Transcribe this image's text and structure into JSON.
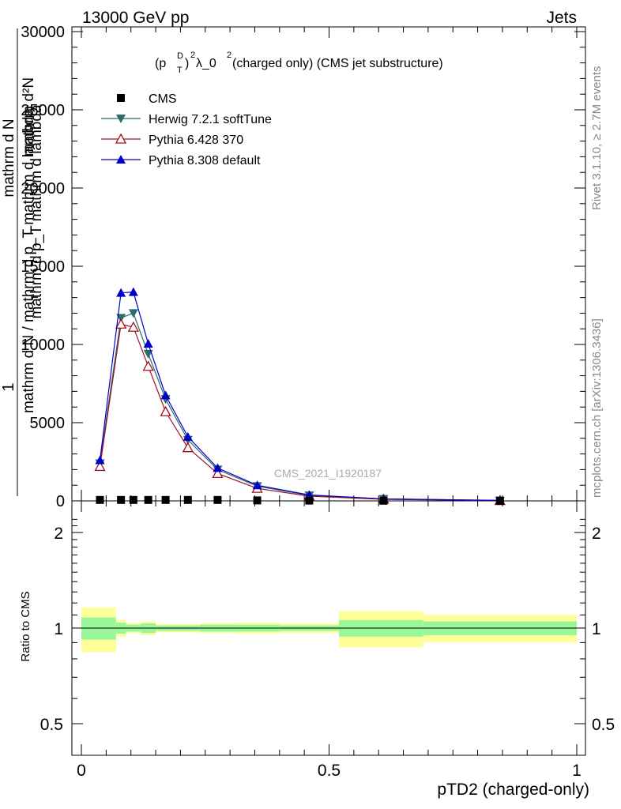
{
  "header": {
    "left": "13000 GeV pp",
    "right": "Jets"
  },
  "plot_title": {
    "prefix": "(p",
    "sup_d": "D",
    "sub_t": "T",
    "mid": ")",
    "sup_2a": "2",
    "lambda": " λ_0",
    "sup_2b": "2",
    "rest": " (charged only) (CMS jet substructure)"
  },
  "side_labels": {
    "rivet": "Rivet 3.1.10, ≥ 2.7M events",
    "mcplots": "mcplots.cern.ch [arXiv:1306.3436]"
  },
  "watermark": "CMS_2021_I1920187",
  "ylabel_main": {
    "one": "1",
    "num": "mathrm d N",
    "den": "mathrm d N / mathrm d p_T mathrm d lambda",
    "den_t": "T",
    "rhs_num": "mathrm d²N",
    "rhs_den": "mathrm d p_T mathrm d lambda"
  },
  "ylabel_ratio": "Ratio to CMS",
  "xlabel": "pTD2 (charged-only)",
  "colors": {
    "cms": "#000000",
    "herwig": "#2e6b6b",
    "pythia6": "#a01020",
    "pythia8": "#0000cc",
    "band_inner": "#99f799",
    "band_outer": "#ffff99"
  },
  "chart_data": [
    {
      "type": "line",
      "panel": "main",
      "xlim": [
        -0.02,
        1.02
      ],
      "ylim": [
        0,
        30000
      ],
      "x_ticks": [
        0,
        0.5,
        1
      ],
      "y_ticks": [
        0,
        5000,
        10000,
        15000,
        20000,
        25000,
        30000
      ],
      "y_tick_labels": [
        "0",
        "5000",
        "10000",
        "15000",
        "20000",
        "25000",
        "30000"
      ],
      "legend_position": "top-left",
      "x": [
        0.0375,
        0.08,
        0.105,
        0.135,
        0.17,
        0.215,
        0.275,
        0.355,
        0.46,
        0.61,
        0.845
      ],
      "series": [
        {
          "name": "CMS",
          "marker": "square",
          "values": [
            60,
            60,
            60,
            60,
            60,
            60,
            60,
            30,
            20,
            10,
            5
          ]
        },
        {
          "name": "Herwig 7.2.1 softTune",
          "marker": "triangle-down",
          "values": [
            2400,
            11700,
            12000,
            9400,
            6500,
            3900,
            2000,
            940,
            350,
            120,
            25
          ]
        },
        {
          "name": "Pythia 6.428 370",
          "marker": "triangle-up-open",
          "values": [
            2200,
            11300,
            11100,
            8600,
            5700,
            3400,
            1750,
            800,
            300,
            100,
            20
          ]
        },
        {
          "name": "Pythia 8.308 default",
          "marker": "triangle-up",
          "values": [
            2600,
            13300,
            13350,
            10050,
            6750,
            4100,
            2100,
            1000,
            380,
            130,
            30
          ]
        }
      ]
    },
    {
      "type": "area",
      "panel": "ratio",
      "xlim": [
        -0.02,
        1.02
      ],
      "ylim": [
        0.4,
        2.3
      ],
      "log_y": true,
      "x_ticks": [
        0,
        0.5,
        1
      ],
      "x_tick_labels": [
        "0",
        "0.5",
        "1"
      ],
      "y_ticks": [
        0.5,
        1,
        2
      ],
      "y_tick_labels": [
        "0.5",
        "1",
        "2"
      ],
      "bins": [
        {
          "x0": 0.0,
          "x1": 0.07,
          "inner": [
            0.92,
            1.08
          ],
          "outer": [
            0.84,
            1.16
          ]
        },
        {
          "x0": 0.07,
          "x1": 0.09,
          "inner": [
            0.96,
            1.04
          ],
          "outer": [
            0.94,
            1.06
          ]
        },
        {
          "x0": 0.09,
          "x1": 0.12,
          "inner": [
            0.975,
            1.025
          ],
          "outer": [
            0.965,
            1.035
          ]
        },
        {
          "x0": 0.12,
          "x1": 0.15,
          "inner": [
            0.965,
            1.035
          ],
          "outer": [
            0.95,
            1.05
          ]
        },
        {
          "x0": 0.15,
          "x1": 0.19,
          "inner": [
            0.98,
            1.02
          ],
          "outer": [
            0.97,
            1.03
          ]
        },
        {
          "x0": 0.19,
          "x1": 0.24,
          "inner": [
            0.98,
            1.02
          ],
          "outer": [
            0.97,
            1.03
          ]
        },
        {
          "x0": 0.24,
          "x1": 0.31,
          "inner": [
            0.975,
            1.025
          ],
          "outer": [
            0.965,
            1.035
          ]
        },
        {
          "x0": 0.31,
          "x1": 0.4,
          "inner": [
            0.975,
            1.025
          ],
          "outer": [
            0.96,
            1.04
          ]
        },
        {
          "x0": 0.4,
          "x1": 0.52,
          "inner": [
            0.98,
            1.02
          ],
          "outer": [
            0.965,
            1.035
          ]
        },
        {
          "x0": 0.52,
          "x1": 0.69,
          "inner": [
            0.94,
            1.06
          ],
          "outer": [
            0.87,
            1.13
          ]
        },
        {
          "x0": 0.69,
          "x1": 1.0,
          "inner": [
            0.95,
            1.05
          ],
          "outer": [
            0.9,
            1.1
          ]
        }
      ]
    }
  ]
}
